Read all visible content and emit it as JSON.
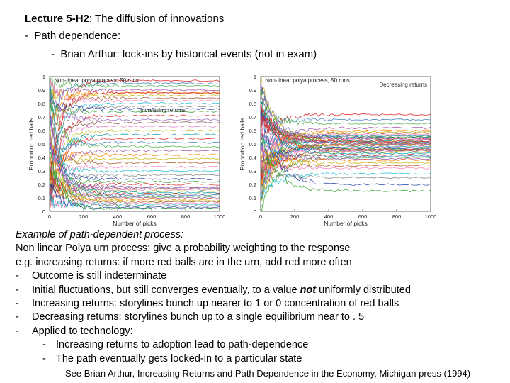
{
  "header": {
    "title_bold": "Lecture 5-H2",
    "title_rest": ": The diffusion of innovations",
    "bullet1_dash": "-",
    "bullet1": "Path dependence:",
    "bullet2_dash": "-",
    "bullet2": "Brian Arthur: lock-ins by historical events (not in exam)"
  },
  "chart_data": [
    {
      "type": "line",
      "title": "Non-linear polya process, 50 runs",
      "annotation": "Increasing returns",
      "xlabel": "Number of picks",
      "ylabel": "Proportion red balls",
      "xlim": [
        0,
        1000
      ],
      "ylim": [
        0,
        1
      ],
      "xticks": [
        "0",
        "200",
        "400",
        "600",
        "800",
        "1000"
      ],
      "yticks": [
        "0",
        "0.1",
        "0.2",
        "0.3",
        "0.4",
        "0.5",
        "0.6",
        "0.7",
        "0.8",
        "0.9",
        "1"
      ],
      "runs": 50,
      "series_final_values": [
        0.97,
        0.95,
        0.93,
        0.9,
        0.88,
        0.86,
        0.84,
        0.82,
        0.8,
        0.78,
        0.76,
        0.74,
        0.71,
        0.68,
        0.66,
        0.63,
        0.6,
        0.57,
        0.54,
        0.51,
        0.48,
        0.45,
        0.42,
        0.39,
        0.36,
        0.33,
        0.3,
        0.27,
        0.24,
        0.22,
        0.2,
        0.18,
        0.17,
        0.16,
        0.15,
        0.14,
        0.13,
        0.12,
        0.11,
        0.1,
        0.09,
        0.08,
        0.07,
        0.06,
        0.05,
        0.04,
        0.03,
        0.02,
        0.88,
        0.18
      ]
    },
    {
      "type": "line",
      "title": "Non-linear polya process, 50 runs",
      "annotation": "Decreasing returns",
      "xlabel": "Number of picks",
      "ylabel": "Proportion red balls",
      "xlim": [
        0,
        1000
      ],
      "ylim": [
        0,
        1
      ],
      "xticks": [
        "0",
        "200",
        "400",
        "600",
        "800",
        "1000"
      ],
      "yticks": [
        "0",
        "0.1",
        "0.2",
        "0.3",
        "0.4",
        "0.5",
        "0.6",
        "0.7",
        "0.8",
        "0.9",
        "1"
      ],
      "runs": 50,
      "series_final_values": [
        0.72,
        0.68,
        0.65,
        0.62,
        0.6,
        0.59,
        0.58,
        0.57,
        0.56,
        0.56,
        0.55,
        0.55,
        0.54,
        0.54,
        0.53,
        0.53,
        0.52,
        0.52,
        0.51,
        0.51,
        0.5,
        0.5,
        0.5,
        0.49,
        0.49,
        0.48,
        0.48,
        0.47,
        0.47,
        0.46,
        0.46,
        0.45,
        0.45,
        0.44,
        0.44,
        0.43,
        0.42,
        0.41,
        0.4,
        0.39,
        0.38,
        0.36,
        0.34,
        0.32,
        0.28,
        0.25,
        0.2,
        0.15,
        0.52,
        0.5
      ]
    }
  ],
  "body": {
    "heading": "Example of path-dependent process:",
    "line1": "Non linear Polya urn process: give a probability weighting to the response",
    "line2": "e.g. increasing returns: if more red balls are in the urn, add red more often",
    "b1_dash": "-",
    "b1": "Outcome is still indeterminate",
    "b2_dash": "-",
    "b2_pre": "Initial fluctuations, but still converges eventually, to a value ",
    "b2_em": "not",
    "b2_post": " uniformly distributed",
    "b3_dash": "-",
    "b3": "Increasing returns: storylines bunch up nearer to 1 or 0 concentration of red balls",
    "b4_dash": "-",
    "b4": "Decreasing returns: storylines bunch up to a single equilibrium near to . 5",
    "b5_dash": "-",
    "b5": "Applied to technology:",
    "s1_dash": "-",
    "s1": "Increasing returns to adoption lead to path-dependence",
    "s2_dash": "-",
    "s2": "The path eventually gets locked-in to a particular state"
  },
  "footer": {
    "citation": "See Brian Arthur, Increasing Returns and Path Dependence in the Economy, Michigan press (1994)"
  },
  "colors": {
    "palette": [
      "#e41a1c",
      "#377eb8",
      "#4daf4a",
      "#984ea3",
      "#ff7f00",
      "#c8b400",
      "#a65628",
      "#f781bf",
      "#17becf",
      "#7f7f7f",
      "#1f3fa0",
      "#2ca02c",
      "#d62728",
      "#9467bd",
      "#8c564b",
      "#e377c2",
      "#bcbd22",
      "#00a0a0"
    ]
  }
}
